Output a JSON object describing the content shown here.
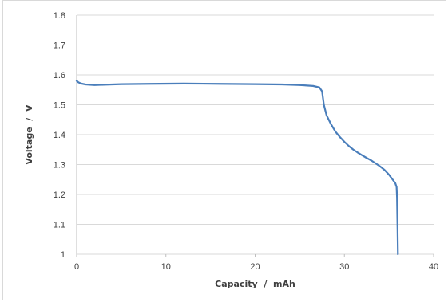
{
  "chart_data": {
    "type": "line",
    "title": "",
    "xlabel": "Capacity  /  mAh",
    "ylabel": "Voltage  /  V",
    "xlim": [
      0,
      40
    ],
    "ylim": [
      1.0,
      1.8
    ],
    "x_ticks": [
      "0",
      "10",
      "20",
      "30",
      "40"
    ],
    "y_ticks": [
      "1",
      "1.1",
      "1.2",
      "1.3",
      "1.4",
      "1.5",
      "1.6",
      "1.7",
      "1.8"
    ],
    "grid": "horizontal",
    "legend": "none",
    "series": [
      {
        "color": "#4a7ebb",
        "points": [
          [
            0,
            1.58
          ],
          [
            0.2,
            1.575
          ],
          [
            0.5,
            1.571
          ],
          [
            1,
            1.568
          ],
          [
            2,
            1.566
          ],
          [
            3,
            1.567
          ],
          [
            5,
            1.569
          ],
          [
            8,
            1.57
          ],
          [
            12,
            1.571
          ],
          [
            16,
            1.57
          ],
          [
            20,
            1.569
          ],
          [
            23,
            1.568
          ],
          [
            25,
            1.566
          ],
          [
            26.5,
            1.563
          ],
          [
            27.2,
            1.558
          ],
          [
            27.5,
            1.545
          ],
          [
            27.7,
            1.5
          ],
          [
            28,
            1.465
          ],
          [
            28.5,
            1.435
          ],
          [
            29,
            1.41
          ],
          [
            29.5,
            1.392
          ],
          [
            30,
            1.376
          ],
          [
            30.5,
            1.362
          ],
          [
            31,
            1.35
          ],
          [
            31.5,
            1.34
          ],
          [
            32,
            1.331
          ],
          [
            32.5,
            1.322
          ],
          [
            33,
            1.314
          ],
          [
            33.5,
            1.304
          ],
          [
            34,
            1.294
          ],
          [
            34.5,
            1.282
          ],
          [
            35,
            1.266
          ],
          [
            35.4,
            1.25
          ],
          [
            35.7,
            1.238
          ],
          [
            35.85,
            1.225
          ],
          [
            35.9,
            1.19
          ],
          [
            35.95,
            1.1
          ],
          [
            36,
            1.0
          ]
        ]
      }
    ]
  }
}
